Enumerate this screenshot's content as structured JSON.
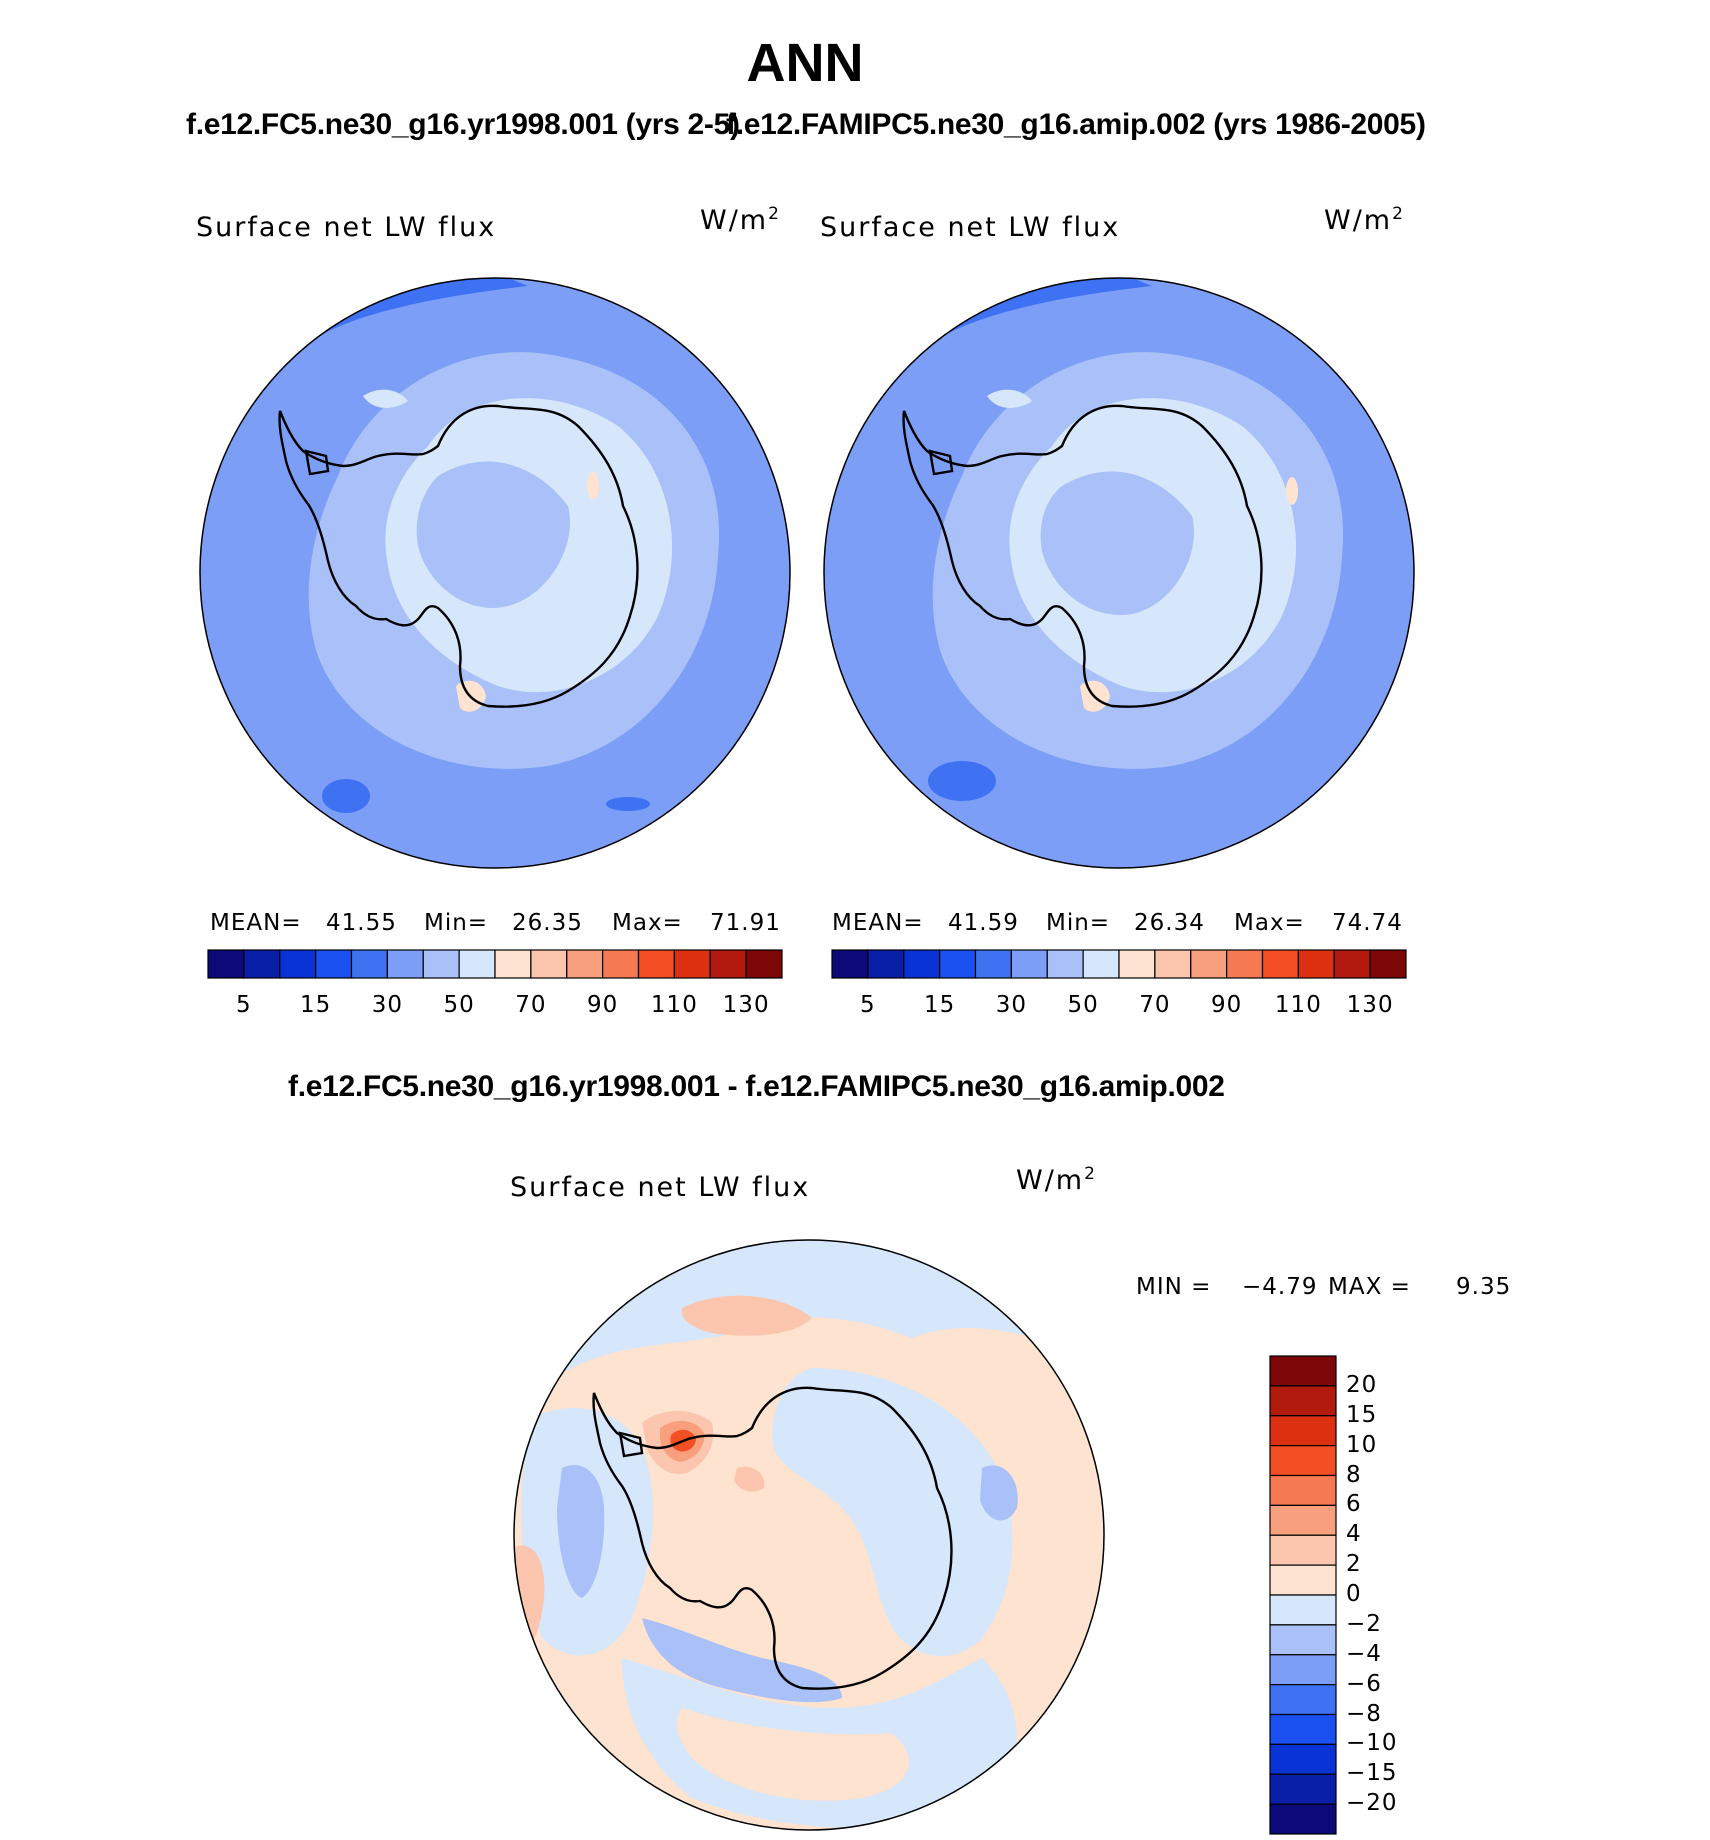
{
  "title": "ANN",
  "case_titles": {
    "left": "f.e12.FC5.ne30_g16.yr1998.001 (yrs 2-5)",
    "right": "f.e12.FAMIPC5.ne30_g16.amip.002 (yrs 1986-2005)",
    "diff": "f.e12.FC5.ne30_g16.yr1998.001 - f.e12.FAMIPC5.ne30_g16.amip.002"
  },
  "panels": [
    {
      "variable": "Surface net LW flux",
      "units_base": "W/m",
      "units_exp": "2",
      "stats": {
        "mean_label": "MEAN=",
        "mean": "41.55",
        "min_label": "Min=",
        "min": "26.35",
        "max_label": "Max=",
        "max": "71.91"
      }
    },
    {
      "variable": "Surface net LW flux",
      "units_base": "W/m",
      "units_exp": "2",
      "stats": {
        "mean_label": "MEAN=",
        "mean": "41.59",
        "min_label": "Min=",
        "min": "26.34",
        "max_label": "Max=",
        "max": "74.74"
      }
    },
    {
      "variable": "Surface net LW flux",
      "units_base": "W/m",
      "units_exp": "2",
      "stats": {
        "min_label": "MIN =",
        "min": "−4.79",
        "max_label": "MAX =",
        "max": "9.35"
      }
    }
  ],
  "colorbar_main": {
    "colors": [
      "#0c0a78",
      "#0a1fa8",
      "#0a33d6",
      "#1a4ff0",
      "#3f72f2",
      "#7c9ef6",
      "#a9c1f8",
      "#d6e6fb",
      "#fde3d0",
      "#fbc6ad",
      "#f8a07e",
      "#f57a52",
      "#f24f24",
      "#db3110",
      "#b11a0c",
      "#7d0606"
    ],
    "tick_labels": [
      "5",
      "15",
      "30",
      "50",
      "70",
      "90",
      "110",
      "130"
    ]
  },
  "colorbar_diff": {
    "colors": [
      "#7d0606",
      "#b11a0c",
      "#db3110",
      "#f24f24",
      "#f57a52",
      "#f8a07e",
      "#fbc6ad",
      "#fde3d0",
      "#d6e6fb",
      "#a9c1f8",
      "#7c9ef6",
      "#3f72f2",
      "#1a4ff0",
      "#0a33d6",
      "#0a1fa8",
      "#0c0a78"
    ],
    "tick_labels": [
      "20",
      "15",
      "10",
      "8",
      "6",
      "4",
      "2",
      "0",
      "−2",
      "−4",
      "−6",
      "−8",
      "−10",
      "−15",
      "−20"
    ]
  },
  "map_palette": {
    "ocean_main": "#7c9ef6",
    "band_main": "#a9c1f8",
    "ice_main": "#d6e6fb",
    "warm_main": "#fde3d0",
    "dark_main": "#3f72f2",
    "diff_base": "#fde3d0",
    "diff_neg": "#d6e6fb",
    "diff_neg2": "#a9c1f8",
    "diff_pos": "#fbc6ad",
    "diff_pos2": "#f8a07e",
    "diff_hot": "#f24f24"
  }
}
